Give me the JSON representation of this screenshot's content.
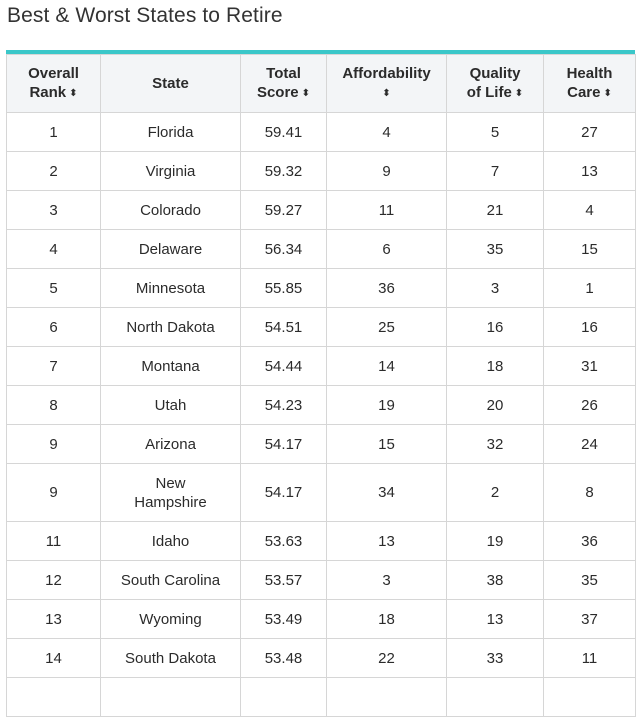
{
  "title": "Best & Worst States to Retire",
  "columns": {
    "rank": {
      "line1": "Overall",
      "line2": "Rank"
    },
    "state": {
      "line1": "State"
    },
    "score": {
      "line1": "Total",
      "line2": "Score"
    },
    "afford": {
      "line1": "Affordability"
    },
    "quality": {
      "line1": "Quality",
      "line2": "of Life"
    },
    "health": {
      "line1": "Health",
      "line2": "Care"
    }
  },
  "sort_icon": "sort-updown-icon",
  "sort_glyph": "⬍",
  "rows": [
    {
      "rank": "1",
      "state": "Florida",
      "score": "59.41",
      "afford": "4",
      "quality": "5",
      "health": "27"
    },
    {
      "rank": "2",
      "state": "Virginia",
      "score": "59.32",
      "afford": "9",
      "quality": "7",
      "health": "13"
    },
    {
      "rank": "3",
      "state": "Colorado",
      "score": "59.27",
      "afford": "11",
      "quality": "21",
      "health": "4"
    },
    {
      "rank": "4",
      "state": "Delaware",
      "score": "56.34",
      "afford": "6",
      "quality": "35",
      "health": "15"
    },
    {
      "rank": "5",
      "state": "Minnesota",
      "score": "55.85",
      "afford": "36",
      "quality": "3",
      "health": "1"
    },
    {
      "rank": "6",
      "state": "North Dakota",
      "score": "54.51",
      "afford": "25",
      "quality": "16",
      "health": "16"
    },
    {
      "rank": "7",
      "state": "Montana",
      "score": "54.44",
      "afford": "14",
      "quality": "18",
      "health": "31"
    },
    {
      "rank": "8",
      "state": "Utah",
      "score": "54.23",
      "afford": "19",
      "quality": "20",
      "health": "26"
    },
    {
      "rank": "9",
      "state": "Arizona",
      "score": "54.17",
      "afford": "15",
      "quality": "32",
      "health": "24"
    },
    {
      "rank": "9",
      "state": "New Hampshire",
      "state_line1": "New",
      "state_line2": "Hampshire",
      "score": "54.17",
      "afford": "34",
      "quality": "2",
      "health": "8"
    },
    {
      "rank": "11",
      "state": "Idaho",
      "score": "53.63",
      "afford": "13",
      "quality": "19",
      "health": "36"
    },
    {
      "rank": "12",
      "state": "South Carolina",
      "score": "53.57",
      "afford": "3",
      "quality": "38",
      "health": "35"
    },
    {
      "rank": "13",
      "state": "Wyoming",
      "score": "53.49",
      "afford": "18",
      "quality": "13",
      "health": "37"
    },
    {
      "rank": "14",
      "state": "South Dakota",
      "score": "53.48",
      "afford": "22",
      "quality": "33",
      "health": "11"
    },
    {
      "rank": "",
      "state": "",
      "score": "",
      "afford": "",
      "quality": "",
      "health": ""
    }
  ]
}
